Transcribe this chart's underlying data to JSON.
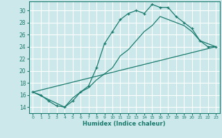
{
  "xlabel": "Humidex (Indice chaleur)",
  "xlim": [
    -0.5,
    23.5
  ],
  "ylim": [
    13.0,
    31.5
  ],
  "yticks": [
    14,
    16,
    18,
    20,
    22,
    24,
    26,
    28,
    30
  ],
  "xticks": [
    0,
    1,
    2,
    3,
    4,
    5,
    6,
    7,
    8,
    9,
    10,
    11,
    12,
    13,
    14,
    15,
    16,
    17,
    18,
    19,
    20,
    21,
    22,
    23
  ],
  "bg_color": "#cce8ea",
  "grid_color": "#ffffff",
  "line_color": "#1a7a6e",
  "lines": [
    {
      "x": [
        0,
        1,
        2,
        3,
        4,
        5,
        6,
        7,
        8,
        9,
        10,
        11,
        12,
        13,
        14,
        15,
        16,
        17,
        18,
        19,
        20,
        21,
        22,
        23
      ],
      "y": [
        16.5,
        16.0,
        15.0,
        14.2,
        14.0,
        15.0,
        16.5,
        17.5,
        20.5,
        24.5,
        26.5,
        28.5,
        29.5,
        30.0,
        29.5,
        31.0,
        30.5,
        30.5,
        29.0,
        28.0,
        27.0,
        25.0,
        24.0,
        24.0
      ],
      "marker": true
    },
    {
      "x": [
        0,
        4,
        5,
        6,
        7,
        8,
        9,
        10,
        11,
        12,
        13,
        14,
        15,
        16,
        17,
        18,
        19,
        20,
        21,
        22,
        23
      ],
      "y": [
        16.5,
        14.0,
        15.5,
        16.5,
        17.2,
        18.5,
        19.5,
        20.5,
        22.5,
        23.5,
        25.0,
        26.5,
        27.5,
        29.0,
        28.5,
        28.0,
        27.5,
        26.5,
        25.0,
        24.5,
        24.0
      ],
      "marker": false
    },
    {
      "x": [
        0,
        23
      ],
      "y": [
        16.5,
        24.0
      ],
      "marker": false
    }
  ]
}
